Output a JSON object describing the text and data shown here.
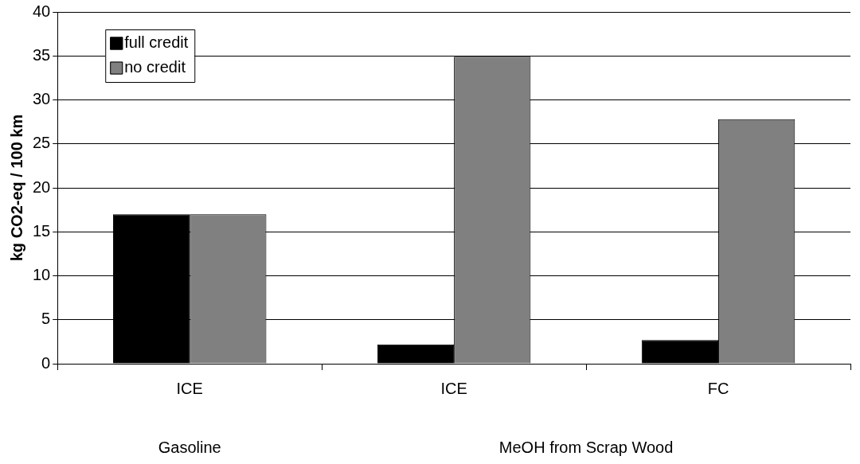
{
  "chart_data": {
    "type": "bar",
    "categories": [
      "ICE",
      "ICE",
      "FC"
    ],
    "series": [
      {
        "name": "full credit",
        "color": "#000000",
        "values": [
          17,
          2.2,
          2.7
        ]
      },
      {
        "name": "no credit",
        "color": "#808080",
        "values": [
          17,
          34.9,
          27.8
        ]
      }
    ],
    "ylabel": "kg CO2-eq / 100 km",
    "ylim": [
      0,
      40
    ],
    "yticks": [
      0,
      5,
      10,
      15,
      20,
      25,
      30,
      35,
      40
    ],
    "grid": "y",
    "legend": "top left",
    "annotations": [
      "Gasoline",
      "MeOH from Scrap Wood"
    ]
  }
}
